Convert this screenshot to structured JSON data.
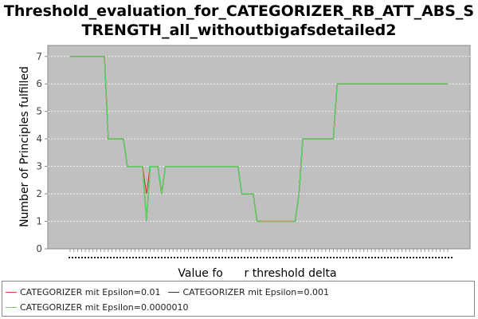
{
  "chart_data": {
    "type": "line",
    "title_line1": "Threshold_evaluation_for_CATEGORIZER_RB_ATT_ABS_S",
    "title_line2": "TRENGTH_all_withoutbigafsdetailed2",
    "xlabel": "Value fo      r threshold delta",
    "ylabel": "Number of Principles fulfilled",
    "ylim": [
      0,
      7.4
    ],
    "yticks": [
      "0",
      "1",
      "2",
      "3",
      "4",
      "5",
      "6",
      "7"
    ],
    "grid": true,
    "legend_position": "bottom",
    "num_x_points": 100,
    "series": [
      {
        "name": "CATEGORIZER mit Epsilon=0.01",
        "color": "#cc4444",
        "values": [
          7,
          7,
          7,
          7,
          7,
          7,
          7,
          7,
          7,
          7,
          4,
          4,
          4,
          4,
          4,
          3,
          3,
          3,
          3,
          3,
          2,
          3,
          3,
          3,
          2,
          3,
          3,
          3,
          3,
          3,
          3,
          3,
          3,
          3,
          3,
          3,
          3,
          3,
          3,
          3,
          3,
          3,
          3,
          3,
          3,
          2,
          2,
          2,
          2,
          1,
          1,
          1,
          1,
          1,
          1,
          1,
          1,
          1,
          1,
          1,
          2,
          4,
          4,
          4,
          4,
          4,
          4,
          4,
          4,
          4,
          6,
          6,
          6,
          6,
          6,
          6,
          6,
          6,
          6,
          6,
          6,
          6,
          6,
          6,
          6,
          6,
          6,
          6,
          6,
          6,
          6,
          6,
          6,
          6,
          6,
          6,
          6,
          6,
          6,
          6
        ]
      },
      {
        "name": "CATEGORIZER mit Epsilon=0.001",
        "color": "#333333",
        "values": [
          7,
          7,
          7,
          7,
          7,
          7,
          7,
          7,
          7,
          7,
          4,
          4,
          4,
          4,
          4,
          3,
          3,
          3,
          3,
          3,
          1,
          3,
          3,
          3,
          2,
          3,
          3,
          3,
          3,
          3,
          3,
          3,
          3,
          3,
          3,
          3,
          3,
          3,
          3,
          3,
          3,
          3,
          3,
          3,
          3,
          2,
          2,
          2,
          2,
          1,
          1,
          1,
          1,
          1,
          1,
          1,
          1,
          1,
          1,
          1,
          2,
          4,
          4,
          4,
          4,
          4,
          4,
          4,
          4,
          4,
          6,
          6,
          6,
          6,
          6,
          6,
          6,
          6,
          6,
          6,
          6,
          6,
          6,
          6,
          6,
          6,
          6,
          6,
          6,
          6,
          6,
          6,
          6,
          6,
          6,
          6,
          6,
          6,
          6,
          6
        ]
      },
      {
        "name": "CATEGORIZER mit Epsilon=0.0000010",
        "color": "#55dd55",
        "values": [
          7,
          7,
          7,
          7,
          7,
          7,
          7,
          7,
          7,
          7,
          4,
          4,
          4,
          4,
          4,
          3,
          3,
          3,
          3,
          3,
          1,
          3,
          3,
          3,
          2,
          3,
          3,
          3,
          3,
          3,
          3,
          3,
          3,
          3,
          3,
          3,
          3,
          3,
          3,
          3,
          3,
          3,
          3,
          3,
          3,
          2,
          2,
          2,
          2,
          1,
          1,
          1,
          1,
          1,
          1,
          1,
          1,
          1,
          1,
          1,
          2,
          4,
          4,
          4,
          4,
          4,
          4,
          4,
          4,
          4,
          6,
          6,
          6,
          6,
          6,
          6,
          6,
          6,
          6,
          6,
          6,
          6,
          6,
          6,
          6,
          6,
          6,
          6,
          6,
          6,
          6,
          6,
          6,
          6,
          6,
          6,
          6,
          6,
          6,
          6
        ]
      }
    ]
  }
}
